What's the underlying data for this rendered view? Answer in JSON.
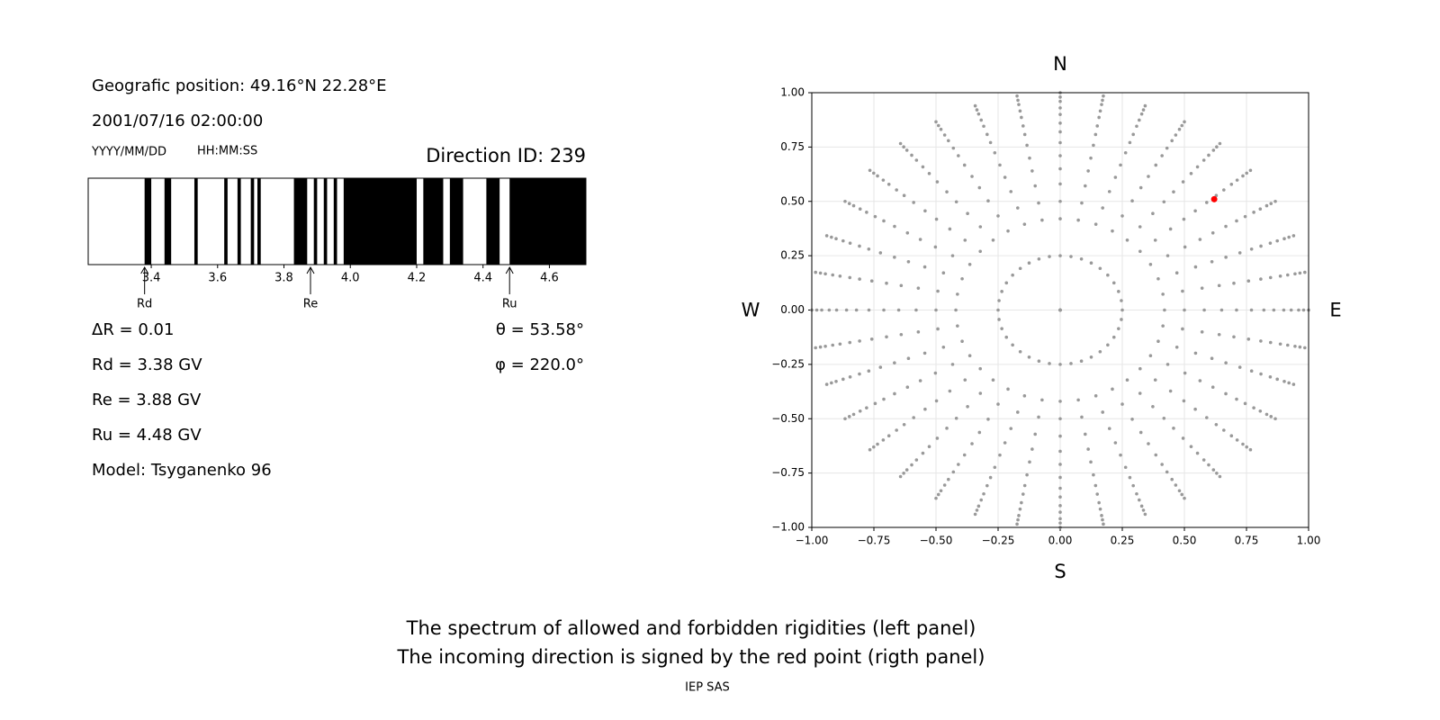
{
  "header": {
    "position": "Geografic position: 49.16°N 22.28°E",
    "datetime": "2001/07/16 02:00:00",
    "date_format": "YYYY/MM/DD",
    "time_format": "HH:MM:SS",
    "direction": "Direction ID: 239"
  },
  "chart_data": [
    {
      "type": "spectrum",
      "xlim": [
        3.21,
        4.71
      ],
      "xticks": [
        3.4,
        3.6,
        3.8,
        {
          "value": 4,
          "label": "4.0"
        },
        4.2,
        4.4,
        4.6
      ],
      "color": "#000000",
      "forbidden": [
        [
          3.38,
          3.4
        ],
        [
          3.44,
          3.46
        ],
        [
          3.53,
          3.54
        ],
        [
          3.62,
          3.63
        ],
        [
          3.66,
          3.67
        ],
        [
          3.7,
          3.71
        ],
        [
          3.72,
          3.73
        ],
        [
          3.83,
          3.87
        ],
        [
          3.89,
          3.9
        ],
        [
          3.92,
          3.93
        ],
        [
          3.95,
          3.96
        ],
        [
          3.98,
          4.2
        ],
        [
          4.22,
          4.28
        ],
        [
          4.3,
          4.34
        ],
        [
          4.41,
          4.45
        ],
        [
          4.48,
          4.71
        ]
      ],
      "step_label": "ΔR = 0.01",
      "markers": [
        {
          "name": "Rd",
          "value": 3.38,
          "label": "Rd = 3.38 GV"
        },
        {
          "name": "Re",
          "value": 3.88,
          "label": "Re = 3.88 GV"
        },
        {
          "name": "Ru",
          "value": 4.48,
          "label": "Ru = 4.48 GV"
        }
      ]
    },
    {
      "type": "sky",
      "xlim": [
        -1,
        1
      ],
      "ylim": [
        -1,
        1
      ],
      "grid": true,
      "xticks": [
        {
          "value": -1,
          "label": "−1.00"
        },
        {
          "value": -0.75,
          "label": "−0.75"
        },
        {
          "value": -0.5,
          "label": "−0.50"
        },
        {
          "value": -0.25,
          "label": "−0.25"
        },
        {
          "value": 0,
          "label": "0.00"
        },
        {
          "value": 0.25,
          "label": "0.25"
        },
        {
          "value": 0.5,
          "label": "0.50"
        },
        {
          "value": 0.75,
          "label": "0.75"
        },
        {
          "value": 1,
          "label": "1.00"
        }
      ],
      "yticks": [
        {
          "value": -1,
          "label": "−1.00"
        },
        {
          "value": -0.75,
          "label": "−0.75"
        },
        {
          "value": -0.5,
          "label": "−0.50"
        },
        {
          "value": -0.25,
          "label": "−0.25"
        },
        {
          "value": 0,
          "label": "0.00"
        },
        {
          "value": 0.25,
          "label": "0.25"
        },
        {
          "value": 0.5,
          "label": "0.50"
        },
        {
          "value": 0.75,
          "label": "0.75"
        },
        {
          "value": 1,
          "label": "1.00"
        }
      ],
      "compass": {
        "north": "N",
        "east": "E",
        "south": "S",
        "west": "W"
      },
      "grid_points": {
        "color": "#999999",
        "azimuth": [
          0,
          10,
          20,
          30,
          40,
          50,
          60,
          70,
          80,
          90,
          100,
          110,
          120,
          130,
          140,
          150,
          160,
          170,
          180,
          190,
          200,
          210,
          220,
          230,
          240,
          250,
          260,
          270,
          280,
          290,
          300,
          310,
          320,
          330,
          340,
          350
        ],
        "radius": [
          0,
          0.25,
          0.42,
          0.5,
          0.58,
          0.65,
          0.71,
          0.77,
          0.82,
          0.86,
          0.9,
          0.93,
          0.96,
          0.98,
          1.0
        ]
      },
      "point": {
        "x": 0.62,
        "y": 0.51,
        "color": "#ff0000"
      }
    }
  ],
  "angles": [
    "θ = 53.58°",
    "φ = 220.0°"
  ],
  "model": "Model: Tsyganenko 96",
  "footer": {
    "lines": [
      "The spectrum of allowed and forbidden rigidities (left panel)",
      "The incoming direction is signed by the red point (rigth panel)"
    ],
    "credit": "IEP SAS"
  }
}
